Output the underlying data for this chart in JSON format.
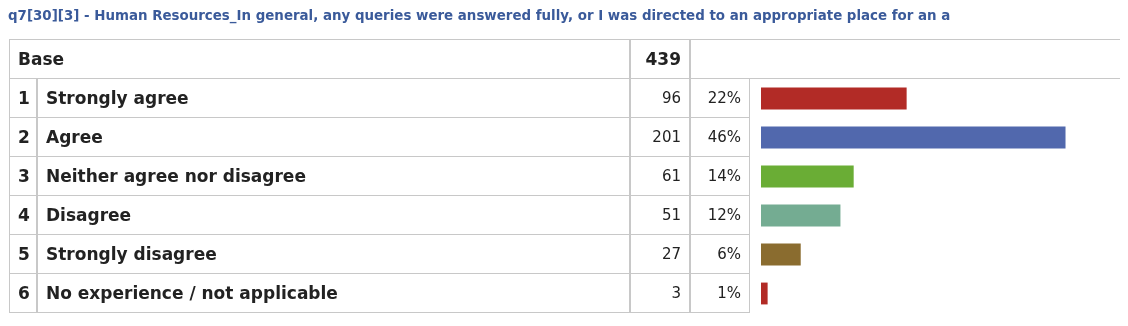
{
  "chart_data": {
    "type": "bar",
    "orientation": "horizontal",
    "title": "q7[30][3] - Human Resources_In general, any queries were answered fully, or I was directed to an appropriate place for an a",
    "categories": [
      "Strongly agree",
      "Agree",
      "Neither agree nor disagree",
      "Disagree",
      "Strongly disagree",
      "No experience / not applicable"
    ],
    "values": [
      22,
      46,
      14,
      12,
      6,
      1
    ],
    "colors": [
      "#b22b26",
      "#5168ad",
      "#6aad35",
      "#74ac92",
      "#8a6c2f",
      "#b22b26"
    ],
    "value_labels": [
      "22%",
      "46%",
      "14%",
      "12%",
      "6%",
      "1%"
    ],
    "annotations": [
      "Base",
      "439",
      "1",
      "2",
      "3",
      "4",
      "5",
      "6",
      "96",
      "201",
      "61",
      "51",
      "27",
      "3"
    ]
  }
}
